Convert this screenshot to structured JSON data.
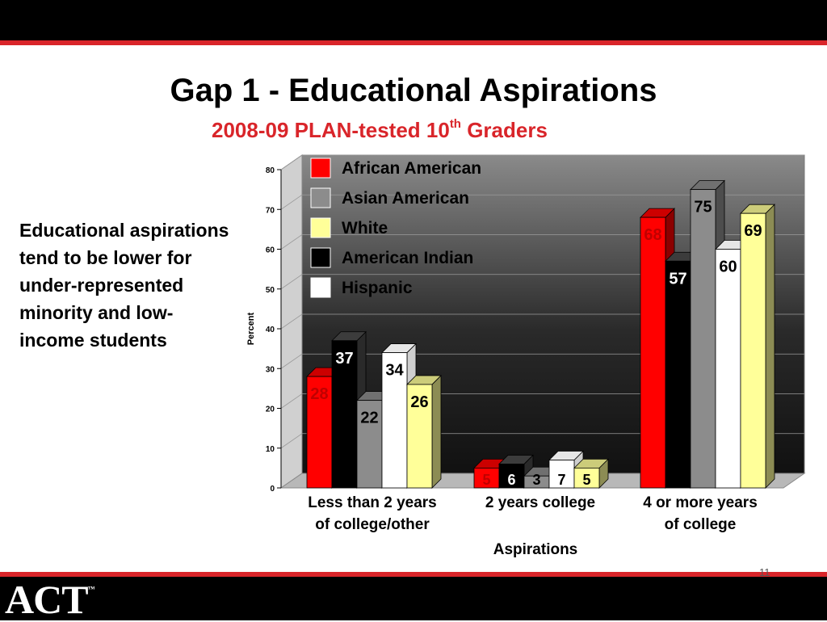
{
  "slide": {
    "title": "Gap 1 - Educational Aspirations",
    "subtitle_main": "2008-09 PLAN-tested 10",
    "subtitle_sup": "th",
    "subtitle_end": " Graders",
    "body_text": "Educational aspirations tend to be lower for under-represented minority and low-income students",
    "logo_text": "ACT",
    "logo_mark": "™",
    "page_number": "11"
  },
  "chart_data": {
    "type": "bar",
    "title": "",
    "xlabel": "Aspirations",
    "ylabel": "Percent",
    "ylim": [
      0,
      80
    ],
    "yticks": [
      0,
      10,
      20,
      30,
      40,
      50,
      60,
      70,
      80
    ],
    "categories": [
      "Less than 2 years of college/other",
      "2 years college",
      "4 or more years of college"
    ],
    "category_lines": [
      [
        "Less than 2 years",
        "of college/other"
      ],
      [
        "2 years college"
      ],
      [
        "4 or more years",
        "of college"
      ]
    ],
    "series": [
      {
        "name": "African American",
        "color": "#ff0000",
        "label_color": "#c00000",
        "values": [
          28,
          5,
          68
        ]
      },
      {
        "name": "American Indian",
        "color": "#000000",
        "label_color": "#ffffff",
        "values": [
          37,
          6,
          57
        ]
      },
      {
        "name": "Asian American",
        "color": "#8c8c8c",
        "label_color": "#000000",
        "values": [
          22,
          3,
          75
        ]
      },
      {
        "name": "Hispanic",
        "color": "#ffffff",
        "label_color": "#000000",
        "values": [
          34,
          7,
          60
        ]
      },
      {
        "name": "White",
        "color": "#ffff99",
        "label_color": "#000000",
        "values": [
          26,
          5,
          69
        ]
      }
    ],
    "legend_order": [
      "African American",
      "Asian American",
      "White",
      "American Indian",
      "Hispanic"
    ],
    "legend_position": "top-left",
    "grid": true
  }
}
